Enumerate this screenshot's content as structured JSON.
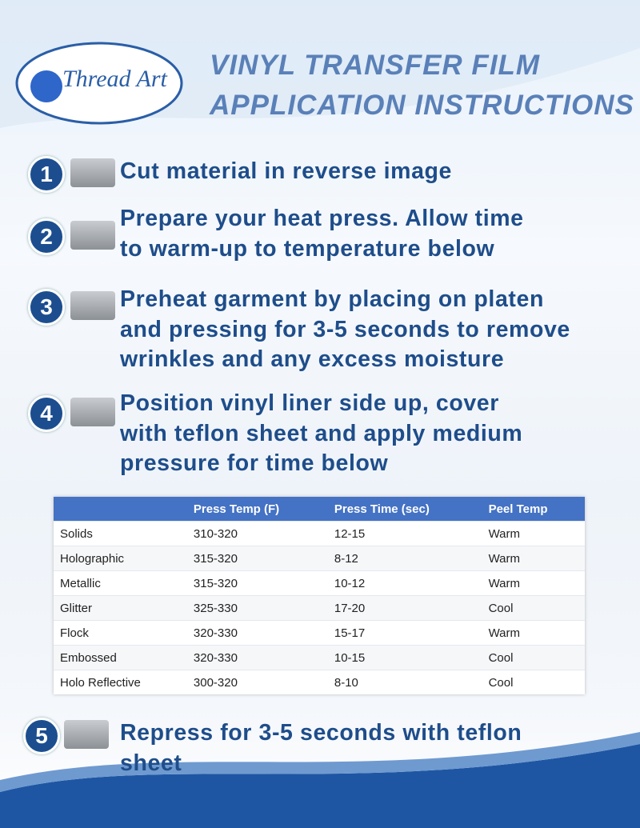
{
  "logo": {
    "text": "Thread Art"
  },
  "header": {
    "title_lines": [
      "VINYL TRANSFER FILM",
      "APPLICATION INSTRUCTIONS"
    ]
  },
  "steps": [
    {
      "number": "1",
      "lines": [
        "Cut material in reverse image"
      ]
    },
    {
      "number": "2",
      "lines": [
        "Prepare your heat press.  Allow time",
        "to warm-up to temperature below"
      ]
    },
    {
      "number": "3",
      "lines": [
        "Preheat garment by placing on platen",
        "and pressing for 3-5 seconds to remove",
        "wrinkles and any excess moisture"
      ]
    },
    {
      "number": "4",
      "lines": [
        "Position vinyl liner side up, cover",
        "with teflon sheet and apply medium",
        "pressure for time below"
      ]
    },
    {
      "number": "5",
      "lines": [
        "Repress for 3-5 seconds with teflon",
        "sheet"
      ]
    }
  ],
  "table": {
    "header": [
      "",
      "Press Temp (F)",
      "Press Time (sec)",
      "Peel Temp"
    ],
    "rows": [
      [
        "Solids",
        "310-320",
        "12-15",
        "Warm"
      ],
      [
        "Holographic",
        "315-320",
        "8-12",
        "Warm"
      ],
      [
        "Metallic",
        "315-320",
        "10-12",
        "Warm"
      ],
      [
        "Glitter",
        "325-330",
        "17-20",
        "Cool"
      ],
      [
        "Flock",
        "320-330",
        "15-17",
        "Warm"
      ],
      [
        "Embossed",
        "320-330",
        "10-15",
        "Cool"
      ],
      [
        "Holo Reflective",
        "300-320",
        "8-10",
        "Cool"
      ]
    ]
  }
}
